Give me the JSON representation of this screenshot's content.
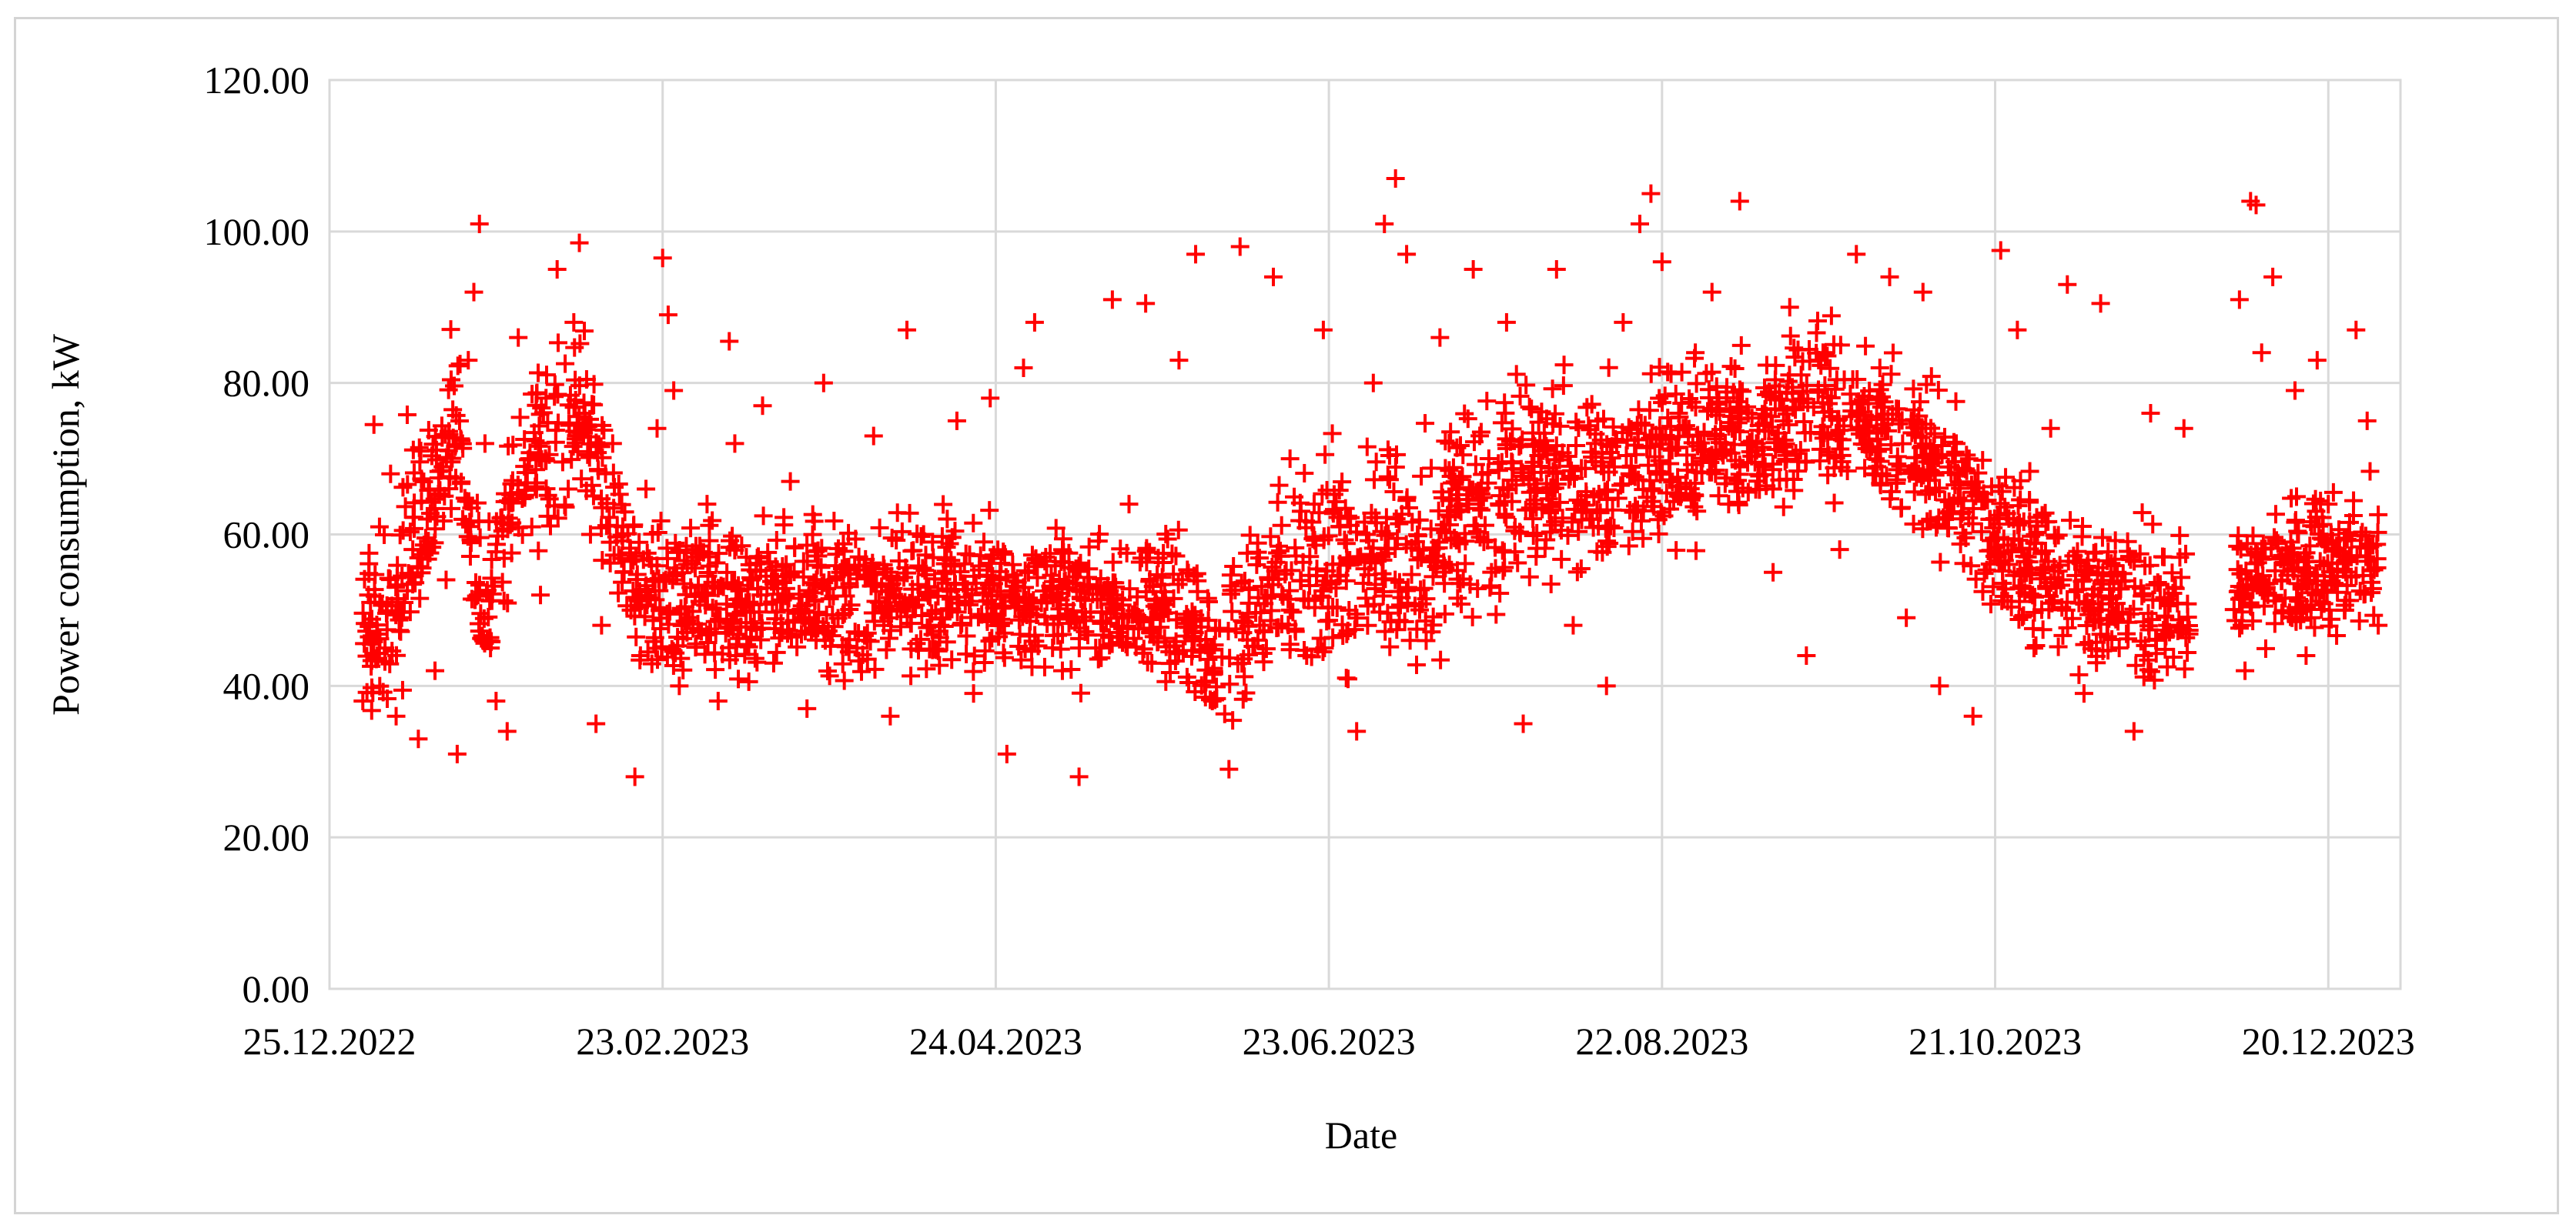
{
  "chart_data": {
    "type": "scatter",
    "title": "",
    "xlabel": "Date",
    "ylabel": "Power consumption, kW",
    "xlim": [
      "2022-12-25",
      "2024-01-02"
    ],
    "ylim": [
      0,
      120
    ],
    "grid": true,
    "legend": "none",
    "marker": "+",
    "colors": {
      "marker": "#ff0000",
      "grid": "#d9d9d9",
      "frame": "#d4d4d4"
    },
    "x_ticks": [
      "25.12.2022",
      "23.02.2023",
      "24.04.2023",
      "23.06.2023",
      "22.08.2023",
      "21.10.2023",
      "20.12.2023"
    ],
    "x_tick_dates": [
      "2022-12-25",
      "2023-02-23",
      "2023-04-24",
      "2023-06-23",
      "2023-08-22",
      "2023-10-21",
      "2023-12-20"
    ],
    "y_ticks": [
      "0.00",
      "20.00",
      "40.00",
      "60.00",
      "80.00",
      "100.00",
      "120.00"
    ],
    "y_tick_values": [
      0,
      20,
      40,
      60,
      80,
      100,
      120
    ],
    "gaps": [
      [
        "2023-11-25",
        "2023-12-03"
      ]
    ],
    "series": [
      {
        "values": [
          [
            "2022-12-31",
            38
          ],
          [
            "2023-01-01",
            52
          ],
          [
            "2023-01-02",
            74.5
          ],
          [
            "2023-01-03",
            61
          ],
          [
            "2023-01-04",
            45
          ],
          [
            "2023-01-05",
            68
          ],
          [
            "2023-01-06",
            36
          ],
          [
            "2023-01-07",
            49
          ],
          [
            "2023-01-08",
            75.8
          ],
          [
            "2023-01-09",
            58
          ],
          [
            "2023-01-10",
            33
          ],
          [
            "2023-01-12",
            66
          ],
          [
            "2023-01-13",
            42
          ],
          [
            "2023-01-15",
            54
          ],
          [
            "2023-01-17",
            31
          ],
          [
            "2023-01-18",
            62
          ],
          [
            "2023-01-19",
            83
          ],
          [
            "2023-01-20",
            92
          ],
          [
            "2023-01-21",
            101
          ],
          [
            "2023-01-22",
            72
          ],
          [
            "2023-01-23",
            45
          ],
          [
            "2023-01-24",
            38
          ],
          [
            "2023-01-26",
            34
          ],
          [
            "2023-01-28",
            86
          ],
          [
            "2023-01-30",
            70
          ],
          [
            "2023-02-01",
            52
          ],
          [
            "2023-02-02",
            78
          ],
          [
            "2023-02-04",
            95
          ],
          [
            "2023-02-06",
            66
          ],
          [
            "2023-02-07",
            88
          ],
          [
            "2023-02-08",
            98.5
          ],
          [
            "2023-02-09",
            76
          ],
          [
            "2023-02-10",
            60
          ],
          [
            "2023-02-11",
            35
          ],
          [
            "2023-02-12",
            48
          ],
          [
            "2023-02-14",
            72
          ],
          [
            "2023-02-16",
            55
          ],
          [
            "2023-02-18",
            28
          ],
          [
            "2023-02-19",
            44
          ],
          [
            "2023-02-20",
            66
          ],
          [
            "2023-02-22",
            74
          ],
          [
            "2023-02-23",
            96.5
          ],
          [
            "2023-02-24",
            89
          ],
          [
            "2023-02-25",
            79
          ],
          [
            "2023-02-26",
            40
          ],
          [
            "2023-03-01",
            58
          ],
          [
            "2023-03-03",
            64
          ],
          [
            "2023-03-05",
            38
          ],
          [
            "2023-03-07",
            85.5
          ],
          [
            "2023-03-08",
            72
          ],
          [
            "2023-03-10",
            51
          ],
          [
            "2023-03-13",
            77
          ],
          [
            "2023-03-15",
            43
          ],
          [
            "2023-03-18",
            67
          ],
          [
            "2023-03-21",
            37
          ],
          [
            "2023-03-24",
            80
          ],
          [
            "2023-03-27",
            55
          ],
          [
            "2023-03-30",
            45
          ],
          [
            "2023-04-02",
            73
          ],
          [
            "2023-04-05",
            36
          ],
          [
            "2023-04-08",
            87
          ],
          [
            "2023-04-11",
            60
          ],
          [
            "2023-04-14",
            48
          ],
          [
            "2023-04-17",
            75
          ],
          [
            "2023-04-20",
            39
          ],
          [
            "2023-04-23",
            78
          ],
          [
            "2023-04-26",
            31
          ],
          [
            "2023-04-29",
            82
          ],
          [
            "2023-05-01",
            88
          ],
          [
            "2023-05-03",
            57
          ],
          [
            "2023-05-06",
            42
          ],
          [
            "2023-05-09",
            28
          ],
          [
            "2023-05-12",
            45
          ],
          [
            "2023-05-15",
            91
          ],
          [
            "2023-05-18",
            64
          ],
          [
            "2023-05-21",
            90.5
          ],
          [
            "2023-05-24",
            50
          ],
          [
            "2023-05-27",
            83
          ],
          [
            "2023-05-30",
            97
          ],
          [
            "2023-06-02",
            38
          ],
          [
            "2023-06-05",
            29
          ],
          [
            "2023-06-07",
            98
          ],
          [
            "2023-06-10",
            56
          ],
          [
            "2023-06-13",
            94
          ],
          [
            "2023-06-16",
            70
          ],
          [
            "2023-06-19",
            44
          ],
          [
            "2023-06-22",
            87
          ],
          [
            "2023-06-25",
            61
          ],
          [
            "2023-06-28",
            34
          ],
          [
            "2023-07-01",
            80
          ],
          [
            "2023-07-03",
            101
          ],
          [
            "2023-07-05",
            107
          ],
          [
            "2023-07-07",
            97
          ],
          [
            "2023-07-10",
            58
          ],
          [
            "2023-07-13",
            86
          ],
          [
            "2023-07-16",
            66
          ],
          [
            "2023-07-19",
            95
          ],
          [
            "2023-07-22",
            53
          ],
          [
            "2023-07-25",
            88
          ],
          [
            "2023-07-28",
            35
          ],
          [
            "2023-07-31",
            72
          ],
          [
            "2023-08-03",
            95
          ],
          [
            "2023-08-06",
            48
          ],
          [
            "2023-08-09",
            62
          ],
          [
            "2023-08-12",
            40
          ],
          [
            "2023-08-15",
            88
          ],
          [
            "2023-08-18",
            101
          ],
          [
            "2023-08-20",
            105
          ],
          [
            "2023-08-22",
            96
          ],
          [
            "2023-08-25",
            76
          ],
          [
            "2023-08-28",
            84
          ],
          [
            "2023-08-31",
            92
          ],
          [
            "2023-09-03",
            64
          ],
          [
            "2023-09-05",
            104
          ],
          [
            "2023-09-08",
            72
          ],
          [
            "2023-09-11",
            55
          ],
          [
            "2023-09-14",
            90
          ],
          [
            "2023-09-17",
            44
          ],
          [
            "2023-09-20",
            84
          ],
          [
            "2023-09-23",
            58
          ],
          [
            "2023-09-26",
            97
          ],
          [
            "2023-09-29",
            68
          ],
          [
            "2023-10-02",
            94
          ],
          [
            "2023-10-05",
            49
          ],
          [
            "2023-10-08",
            92
          ],
          [
            "2023-10-11",
            40
          ],
          [
            "2023-10-14",
            72
          ],
          [
            "2023-10-17",
            36
          ],
          [
            "2023-10-20",
            62
          ],
          [
            "2023-10-22",
            97.5
          ],
          [
            "2023-10-25",
            87
          ],
          [
            "2023-10-28",
            45
          ],
          [
            "2023-10-31",
            74
          ],
          [
            "2023-11-03",
            93
          ],
          [
            "2023-11-06",
            39
          ],
          [
            "2023-11-09",
            90.5
          ],
          [
            "2023-11-12",
            55
          ],
          [
            "2023-11-15",
            34
          ],
          [
            "2023-11-18",
            76
          ],
          [
            "2023-11-21",
            48
          ],
          [
            "2023-11-24",
            74
          ],
          [
            "2023-12-04",
            91
          ],
          [
            "2023-12-05",
            42
          ],
          [
            "2023-12-06",
            104
          ],
          [
            "2023-12-07",
            103.5
          ],
          [
            "2023-12-08",
            84
          ],
          [
            "2023-12-10",
            94
          ],
          [
            "2023-12-12",
            56
          ],
          [
            "2023-12-14",
            79
          ],
          [
            "2023-12-16",
            44
          ],
          [
            "2023-12-18",
            83
          ],
          [
            "2023-12-20",
            64
          ],
          [
            "2023-12-23",
            50
          ],
          [
            "2023-12-25",
            87
          ],
          [
            "2023-12-27",
            75
          ],
          [
            "2023-12-29",
            48
          ]
        ]
      }
    ]
  }
}
